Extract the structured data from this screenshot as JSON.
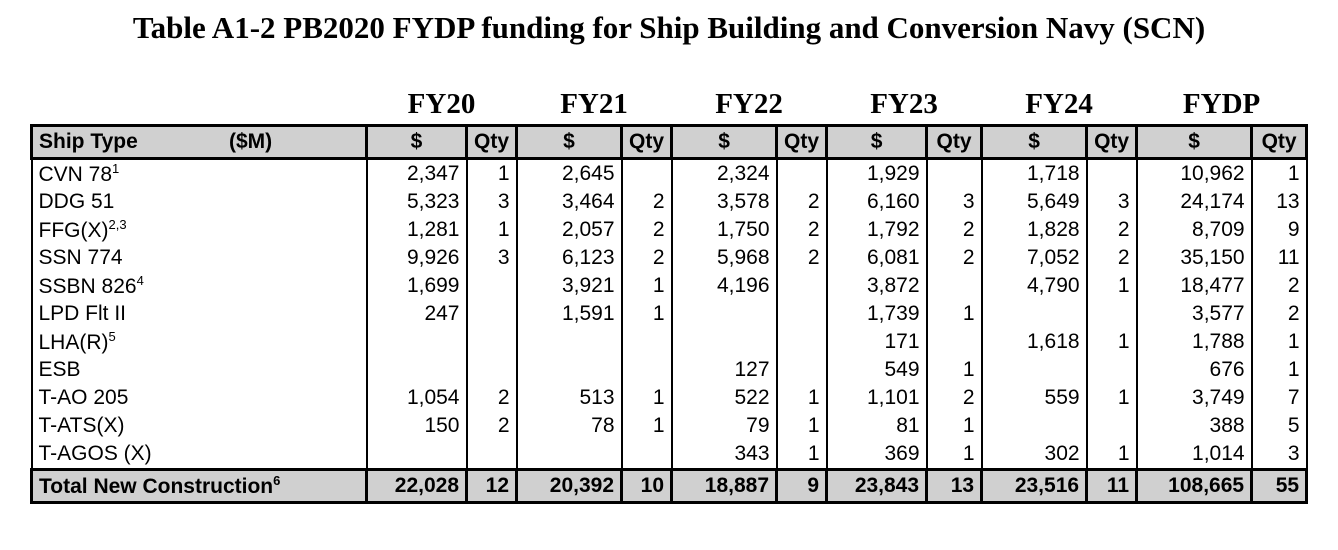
{
  "title": "Table A1-2 PB2020 FYDP funding for Ship Building and Conversion Navy (SCN)",
  "table": {
    "years": [
      "FY20",
      "FY21",
      "FY22",
      "FY23",
      "FY24",
      "FYDP"
    ],
    "header": {
      "ship_type": "Ship Type",
      "unit": "($M)",
      "dollar": "$",
      "qty": "Qty"
    },
    "rows": [
      {
        "ship": "CVN 78",
        "note": "1",
        "cells": [
          "2,347",
          "1",
          "2,645",
          null,
          "2,324",
          null,
          "1,929",
          null,
          "1,718",
          null,
          "10,962",
          "1"
        ]
      },
      {
        "ship": "DDG 51",
        "note": null,
        "cells": [
          "5,323",
          "3",
          "3,464",
          "2",
          "3,578",
          "2",
          "6,160",
          "3",
          "5,649",
          "3",
          "24,174",
          "13"
        ]
      },
      {
        "ship": "FFG(X)",
        "note": "2,3",
        "cells": [
          "1,281",
          "1",
          "2,057",
          "2",
          "1,750",
          "2",
          "1,792",
          "2",
          "1,828",
          "2",
          "8,709",
          "9"
        ]
      },
      {
        "ship": "SSN 774",
        "note": null,
        "cells": [
          "9,926",
          "3",
          "6,123",
          "2",
          "5,968",
          "2",
          "6,081",
          "2",
          "7,052",
          "2",
          "35,150",
          "11"
        ]
      },
      {
        "ship": "SSBN 826",
        "note": "4",
        "cells": [
          "1,699",
          null,
          "3,921",
          "1",
          "4,196",
          null,
          "3,872",
          null,
          "4,790",
          "1",
          "18,477",
          "2"
        ]
      },
      {
        "ship": "LPD Flt II",
        "note": null,
        "cells": [
          "247",
          null,
          "1,591",
          "1",
          null,
          null,
          "1,739",
          "1",
          null,
          null,
          "3,577",
          "2"
        ]
      },
      {
        "ship": "LHA(R)",
        "note": "5",
        "cells": [
          null,
          null,
          null,
          null,
          null,
          null,
          "171",
          null,
          "1,618",
          "1",
          "1,788",
          "1"
        ]
      },
      {
        "ship": "ESB",
        "note": null,
        "cells": [
          null,
          null,
          null,
          null,
          "127",
          null,
          "549",
          "1",
          null,
          null,
          "676",
          "1"
        ]
      },
      {
        "ship": "T-AO 205",
        "note": null,
        "cells": [
          "1,054",
          "2",
          "513",
          "1",
          "522",
          "1",
          "1,101",
          "2",
          "559",
          "1",
          "3,749",
          "7"
        ]
      },
      {
        "ship": "T-ATS(X)",
        "note": null,
        "cells": [
          "150",
          "2",
          "78",
          "1",
          "79",
          "1",
          "81",
          "1",
          null,
          null,
          "388",
          "5"
        ]
      },
      {
        "ship": "T-AGOS (X)",
        "note": null,
        "cells": [
          null,
          null,
          null,
          null,
          "343",
          "1",
          "369",
          "1",
          "302",
          "1",
          "1,014",
          "3"
        ]
      }
    ],
    "total": {
      "ship": "Total New Construction",
      "note": "6",
      "cells": [
        "22,028",
        "12",
        "20,392",
        "10",
        "18,887",
        "9",
        "23,843",
        "13",
        "23,516",
        "11",
        "108,665",
        "55"
      ]
    }
  }
}
